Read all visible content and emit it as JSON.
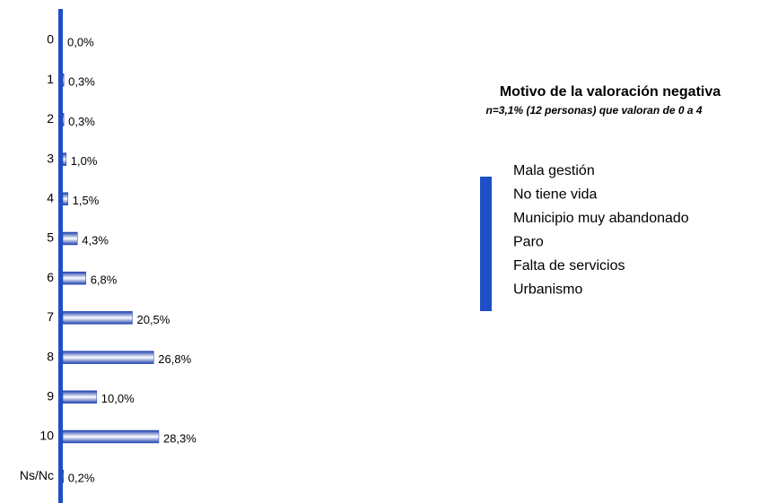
{
  "chart_data": {
    "type": "bar",
    "orientation": "horizontal",
    "categories": [
      "0",
      "1",
      "2",
      "3",
      "4",
      "5",
      "6",
      "7",
      "8",
      "9",
      "10",
      "Ns/Nc"
    ],
    "values": [
      0,
      0.3,
      0.3,
      1,
      1.5,
      4.3,
      6.8,
      20.5,
      26.8,
      10,
      28.3,
      0.2
    ],
    "value_labels": [
      "0,0%",
      "0,3%",
      "0,3%",
      "1,0%",
      "1,5%",
      "4,3%",
      "6,8%",
      "20,5%",
      "26,8%",
      "10,0%",
      "28,3%",
      "0,2%"
    ],
    "color": "#1f3fae",
    "panel": {
      "title": "Motivo de la valoración negativa",
      "subtitle": "n=3,1% (12 personas) que valoran de 0 a 4",
      "items": [
        "Mala gestión",
        "No tiene vida",
        "Municipio muy abandonado",
        "Paro",
        "Falta de servicios",
        "Urbanismo"
      ]
    }
  }
}
